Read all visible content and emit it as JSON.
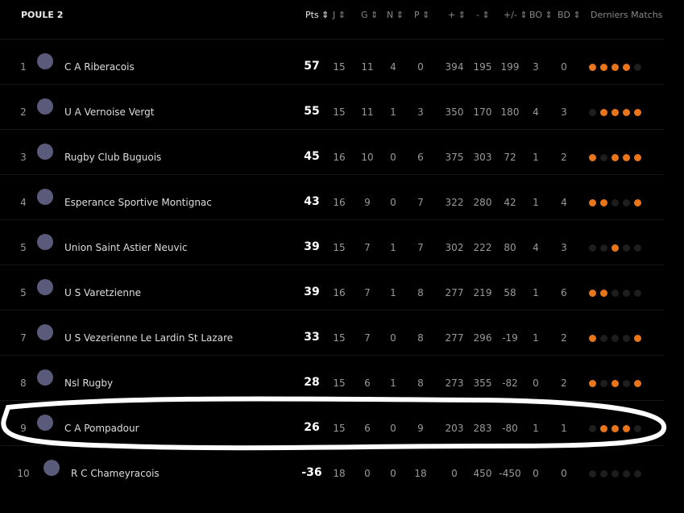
{
  "title": "POULE 2",
  "columns": [
    "Pts",
    "J",
    "G",
    "N",
    "P",
    "+",
    "-",
    "+/-",
    "BO",
    "BD",
    "Derniers Matchs"
  ],
  "accent": "#e8751a",
  "rows": [
    {
      "rank": "1",
      "name": "C A Riberacois",
      "pts": "57",
      "j": "15",
      "g": "11",
      "n": "4",
      "p": "0",
      "pf": "394",
      "pa": "195",
      "diff": "199",
      "bo": "3",
      "bd": "0",
      "form": [
        1,
        1,
        1,
        1,
        0
      ]
    },
    {
      "rank": "2",
      "name": "U A Vernoise Vergt",
      "pts": "55",
      "j": "15",
      "g": "11",
      "n": "1",
      "p": "3",
      "pf": "350",
      "pa": "170",
      "diff": "180",
      "bo": "4",
      "bd": "3",
      "form": [
        0,
        1,
        1,
        1,
        1
      ]
    },
    {
      "rank": "3",
      "name": "Rugby Club Buguois",
      "pts": "45",
      "j": "16",
      "g": "10",
      "n": "0",
      "p": "6",
      "pf": "375",
      "pa": "303",
      "diff": "72",
      "bo": "1",
      "bd": "2",
      "form": [
        1,
        0,
        1,
        1,
        1
      ]
    },
    {
      "rank": "4",
      "name": "Esperance Sportive Montignac",
      "pts": "43",
      "j": "16",
      "g": "9",
      "n": "0",
      "p": "7",
      "pf": "322",
      "pa": "280",
      "diff": "42",
      "bo": "1",
      "bd": "4",
      "form": [
        1,
        1,
        0,
        0,
        1
      ]
    },
    {
      "rank": "5",
      "name": "Union Saint Astier Neuvic",
      "pts": "39",
      "j": "15",
      "g": "7",
      "n": "1",
      "p": "7",
      "pf": "302",
      "pa": "222",
      "diff": "80",
      "bo": "4",
      "bd": "3",
      "form": [
        0,
        0,
        1,
        0,
        0
      ]
    },
    {
      "rank": "5",
      "name": "U S Varetzienne",
      "pts": "39",
      "j": "16",
      "g": "7",
      "n": "1",
      "p": "8",
      "pf": "277",
      "pa": "219",
      "diff": "58",
      "bo": "1",
      "bd": "6",
      "form": [
        1,
        1,
        0,
        0,
        0
      ]
    },
    {
      "rank": "7",
      "name": "U S Vezerienne Le Lardin St Lazare",
      "pts": "33",
      "j": "15",
      "g": "7",
      "n": "0",
      "p": "8",
      "pf": "277",
      "pa": "296",
      "diff": "-19",
      "bo": "1",
      "bd": "2",
      "form": [
        1,
        0,
        0,
        0,
        1
      ]
    },
    {
      "rank": "8",
      "name": "Nsl Rugby",
      "pts": "28",
      "j": "15",
      "g": "6",
      "n": "1",
      "p": "8",
      "pf": "273",
      "pa": "355",
      "diff": "-82",
      "bo": "0",
      "bd": "2",
      "form": [
        1,
        0,
        1,
        0,
        1
      ]
    },
    {
      "rank": "9",
      "name": "C A Pompadour",
      "pts": "26",
      "j": "15",
      "g": "6",
      "n": "0",
      "p": "9",
      "pf": "203",
      "pa": "283",
      "diff": "-80",
      "bo": "1",
      "bd": "1",
      "form": [
        0,
        1,
        1,
        1,
        0
      ]
    },
    {
      "rank": "10",
      "name": "R C Chameyracois",
      "pts": "-36",
      "j": "18",
      "g": "0",
      "n": "0",
      "p": "18",
      "pf": "0",
      "pa": "450",
      "diff": "-450",
      "bo": "0",
      "bd": "0",
      "form": [
        0,
        0,
        0,
        0,
        0
      ]
    }
  ]
}
